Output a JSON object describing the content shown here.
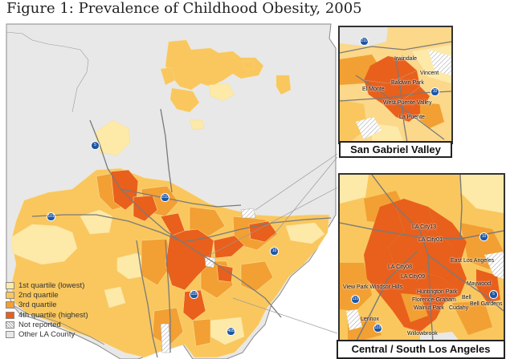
{
  "title": "Figure 1: Prevalence of Childhood Obesity, 2005",
  "colors": {
    "q1": "#fde9a8",
    "q2": "#f9c75e",
    "q3": "#f2a033",
    "q4": "#e8601c",
    "other": "#e8e8e8",
    "not_reported": "#ffffff"
  },
  "legend": [
    {
      "label": "1st quartile (lowest)",
      "key": "q1"
    },
    {
      "label": "2nd quartile",
      "key": "q2"
    },
    {
      "label": "3rd quartile",
      "key": "q3"
    },
    {
      "label": "4th quartile (highest)",
      "key": "q4"
    },
    {
      "label": "Not reported",
      "key": "not_reported"
    },
    {
      "label": "Other LA County",
      "key": "other"
    }
  ],
  "insets": {
    "san_gabriel": {
      "label": "San Gabriel Valley",
      "places": [
        "Irwindale",
        "Vincent",
        "Baldwin Park",
        "El Monte",
        "West Puente Valley",
        "La Puente"
      ]
    },
    "central_south": {
      "label": "Central / South Los Angeles",
      "places": [
        "LA City13",
        "LA City01",
        "East Los Angeles",
        "LA City08",
        "LA City09",
        "Maywood",
        "View Park Windsor Hills",
        "Huntington Park",
        "Florence-Graham",
        "Bell",
        "Bell Gardens",
        "Cudahy",
        "Walnut Park",
        "Lennox",
        "Willowbrook"
      ]
    }
  },
  "highways": {
    "main": [
      "5",
      "210",
      "101",
      "10",
      "110",
      "405"
    ],
    "san_gabriel": [
      "210",
      "10"
    ],
    "central_south": [
      "10",
      "110",
      "405",
      "5",
      "110"
    ]
  }
}
